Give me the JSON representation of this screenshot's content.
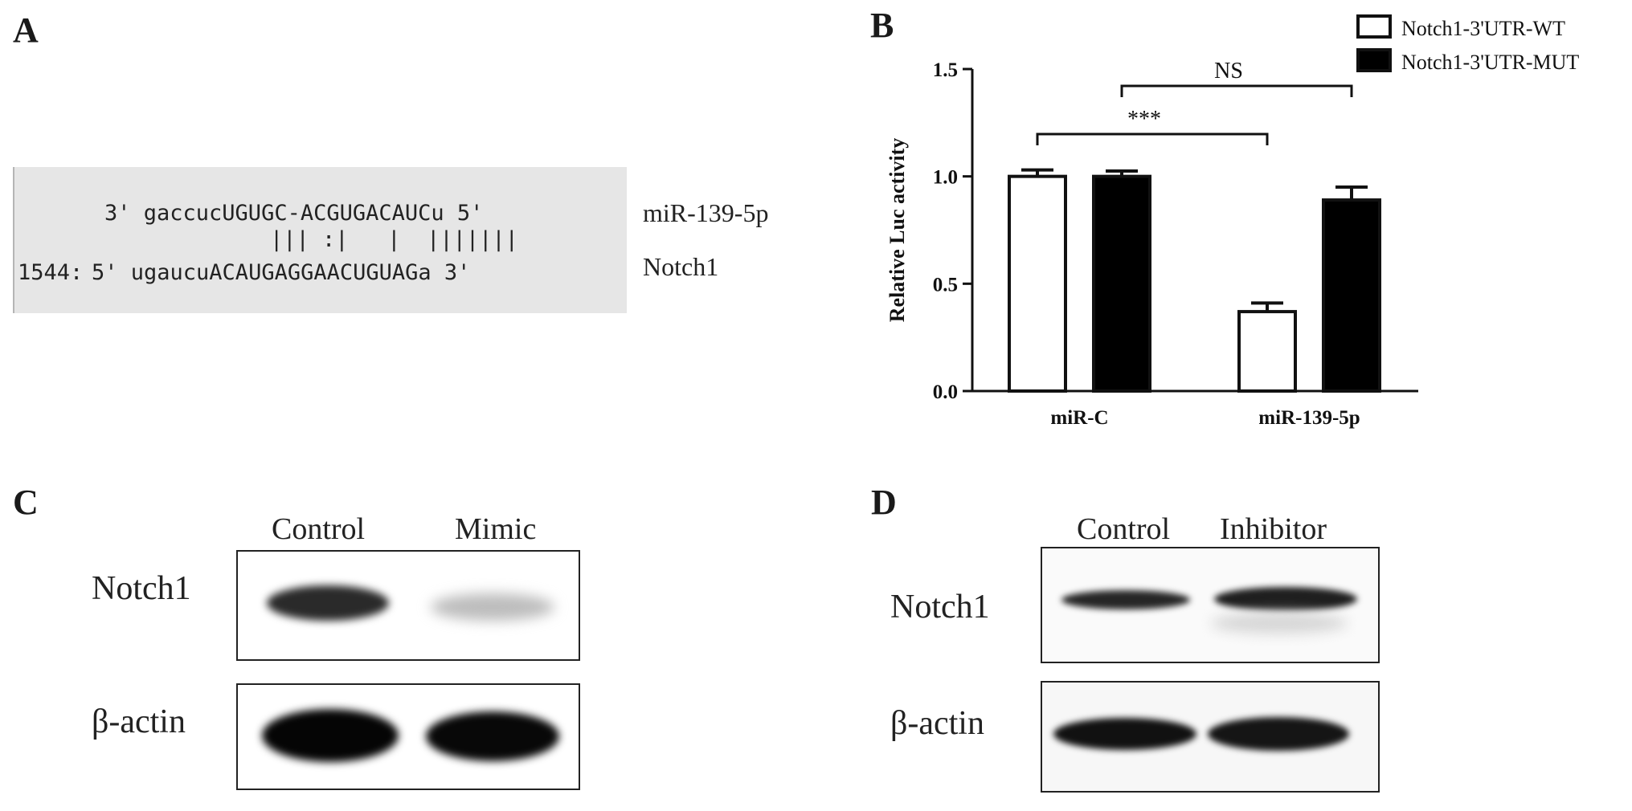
{
  "panels": {
    "a": "A",
    "b": "B",
    "c": "C",
    "d": "D"
  },
  "alignment": {
    "mirna_line": "3' gaccucUGUGC-ACGUGACAUCu 5'",
    "pairing_line": "||| :|   |  |||||||",
    "target_position": "1544:",
    "target_line": "5' ugaucuACAUGAGGAACUGUAGa 3'",
    "mirna_label": "miR-139-5p",
    "target_label": "Notch1"
  },
  "chart_data": {
    "type": "bar",
    "categories": [
      "miR-C",
      "miR-139-5p"
    ],
    "series": [
      {
        "name": "Notch1-3'UTR-WT",
        "values": [
          1.0,
          0.37
        ],
        "errors": [
          0.03,
          0.04
        ],
        "fill": "#ffffff"
      },
      {
        "name": "Notch1-3'UTR-MUT",
        "values": [
          1.0,
          0.89
        ],
        "errors": [
          0.025,
          0.06
        ],
        "fill": "#000000"
      }
    ],
    "title": "",
    "xlabel": "",
    "ylabel": "Relative Luc activity",
    "ylim": [
      0,
      1.5
    ],
    "yticks": [
      "0.0",
      "0.5",
      "1.0",
      "1.5"
    ],
    "grid": false,
    "legend": "top-right",
    "annotations": [
      {
        "text": "***",
        "from": "miR-C Notch1-3'UTR-WT",
        "to": "miR-139-5p Notch1-3'UTR-WT"
      },
      {
        "text": "NS",
        "from": "miR-C Notch1-3'UTR-MUT",
        "to": "miR-139-5p Notch1-3'UTR-MUT"
      }
    ]
  },
  "blot_c": {
    "lanes": [
      "Control",
      "Mimic"
    ],
    "rows": [
      "Notch1",
      "β-actin"
    ]
  },
  "blot_d": {
    "lanes": [
      "Control",
      "Inhibitor"
    ],
    "rows": [
      "Notch1",
      "β-actin"
    ]
  }
}
